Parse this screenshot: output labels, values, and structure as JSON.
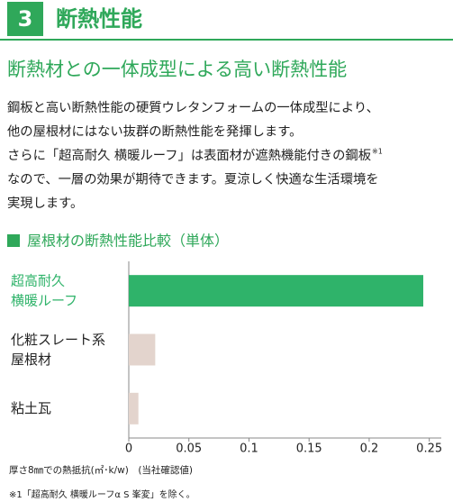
{
  "header": {
    "number": "3",
    "title": "断熱性能"
  },
  "heading": "断熱材との一体成型による高い断熱性能",
  "body": {
    "lines": [
      "鋼板と高い断熱性能の硬質ウレタンフォームの一体成型により、",
      "他の屋根材にはない抜群の断熱性能を発揮します。",
      "さらに「超高耐久 横暖ルーフ」は表面材が遮熱機能付きの鋼板",
      "なので、一層の効果が期待できます。夏涼しく快適な生活環境を",
      "実現します。"
    ],
    "note_ref": "※1"
  },
  "chart_data": {
    "type": "hbar",
    "title": "屋根材の断熱性能比較（単体）",
    "categories": [
      "超高耐久\n横暖ルーフ",
      "化粧スレート系\n屋根材",
      "粘土瓦"
    ],
    "values": [
      0.245,
      0.022,
      0.008
    ],
    "colors": [
      "#2fb36a",
      "#e3d4cd",
      "#e3d4cd"
    ],
    "xlim": [
      0,
      0.26
    ],
    "xticks": [
      0,
      0.05,
      0.1,
      0.15,
      0.2,
      0.25
    ],
    "x_label": "厚さ8㎜での熱抵抗(㎡･k/w)　(当社確認値)",
    "grid": false
  },
  "footnote": "※1「超高耐久 横暖ルーフα S 峯変」を除く。"
}
